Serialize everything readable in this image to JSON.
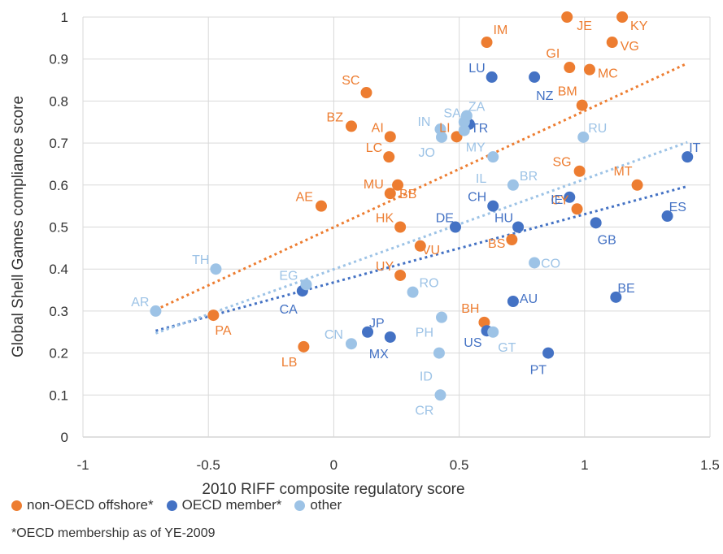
{
  "chart_data": {
    "type": "scatter",
    "title": "",
    "xlabel": "2010 RIFF composite regulatory score",
    "ylabel": "Global Shell Games compliance score",
    "xlim": [
      -1,
      1.5
    ],
    "ylim": [
      0,
      1
    ],
    "x_ticks": [
      "-1",
      "-0.5",
      "0",
      "0.5",
      "1",
      "1.5"
    ],
    "y_ticks": [
      "0",
      "0.1",
      "0.2",
      "0.3",
      "0.4",
      "0.5",
      "0.6",
      "0.7",
      "0.8",
      "0.9",
      "1"
    ],
    "grid": true,
    "legend_position": "bottom",
    "footnote": "*OECD membership as of YE-2009",
    "series": [
      {
        "name": "non-OECD offshore*",
        "color": "#ed7d31",
        "points": [
          {
            "label": "JE",
            "x": 0.93,
            "y": 1.0
          },
          {
            "label": "KY",
            "x": 1.15,
            "y": 1.0
          },
          {
            "label": "IM",
            "x": 0.61,
            "y": 0.94
          },
          {
            "label": "VG",
            "x": 1.11,
            "y": 0.94
          },
          {
            "label": "GI",
            "x": 0.94,
            "y": 0.88
          },
          {
            "label": "MC",
            "x": 1.02,
            "y": 0.875
          },
          {
            "label": "SC",
            "x": 0.13,
            "y": 0.82
          },
          {
            "label": "BM",
            "x": 0.99,
            "y": 0.79
          },
          {
            "label": "BZ",
            "x": 0.07,
            "y": 0.74
          },
          {
            "label": "AI",
            "x": 0.225,
            "y": 0.715
          },
          {
            "label": "LI",
            "x": 0.49,
            "y": 0.715
          },
          {
            "label": "LC",
            "x": 0.22,
            "y": 0.667
          },
          {
            "label": "SG",
            "x": 0.98,
            "y": 0.633
          },
          {
            "label": "MT",
            "x": 1.21,
            "y": 0.6
          },
          {
            "label": "BB",
            "x": 0.255,
            "y": 0.6
          },
          {
            "label": "MU",
            "x": 0.225,
            "y": 0.58
          },
          {
            "label": "AE",
            "x": -0.05,
            "y": 0.55
          },
          {
            "label": "CY",
            "x": 0.97,
            "y": 0.543
          },
          {
            "label": "HK",
            "x": 0.265,
            "y": 0.5
          },
          {
            "label": "BS",
            "x": 0.71,
            "y": 0.47
          },
          {
            "label": "VU",
            "x": 0.345,
            "y": 0.455
          },
          {
            "label": "UY",
            "x": 0.265,
            "y": 0.385
          },
          {
            "label": "PA",
            "x": -0.48,
            "y": 0.29
          },
          {
            "label": "BH",
            "x": 0.6,
            "y": 0.273
          },
          {
            "label": "LB",
            "x": -0.12,
            "y": 0.215
          }
        ]
      },
      {
        "name": "OECD member*",
        "color": "#4472c4",
        "points": [
          {
            "label": "LU",
            "x": 0.63,
            "y": 0.857
          },
          {
            "label": "NZ",
            "x": 0.8,
            "y": 0.857
          },
          {
            "label": "TR",
            "x": 0.54,
            "y": 0.745
          },
          {
            "label": "IT",
            "x": 1.41,
            "y": 0.667
          },
          {
            "label": "IE",
            "x": 0.94,
            "y": 0.571
          },
          {
            "label": "CH",
            "x": 0.635,
            "y": 0.55
          },
          {
            "label": "GB",
            "x": 1.045,
            "y": 0.51
          },
          {
            "label": "ES",
            "x": 1.33,
            "y": 0.526
          },
          {
            "label": "DE",
            "x": 0.485,
            "y": 0.5
          },
          {
            "label": "HU",
            "x": 0.735,
            "y": 0.5
          },
          {
            "label": "CA",
            "x": -0.125,
            "y": 0.348
          },
          {
            "label": "BE",
            "x": 1.125,
            "y": 0.333
          },
          {
            "label": "AU",
            "x": 0.715,
            "y": 0.323
          },
          {
            "label": "JP",
            "x": 0.135,
            "y": 0.25
          },
          {
            "label": "MX",
            "x": 0.225,
            "y": 0.238
          },
          {
            "label": "US",
            "x": 0.61,
            "y": 0.253
          },
          {
            "label": "PT",
            "x": 0.855,
            "y": 0.2
          }
        ]
      },
      {
        "name": "other",
        "color": "#9dc3e6",
        "points": [
          {
            "label": "ZA",
            "x": 0.53,
            "y": 0.765
          },
          {
            "label": "SA",
            "x": 0.52,
            "y": 0.75
          },
          {
            "label": "IN",
            "x": 0.425,
            "y": 0.733
          },
          {
            "label": "JO",
            "x": 0.43,
            "y": 0.714
          },
          {
            "label": "MY",
            "x": 0.52,
            "y": 0.73
          },
          {
            "label": "RU",
            "x": 0.995,
            "y": 0.714
          },
          {
            "label": "IL",
            "x": 0.635,
            "y": 0.667
          },
          {
            "label": "BR",
            "x": 0.715,
            "y": 0.6
          },
          {
            "label": "CO",
            "x": 0.8,
            "y": 0.415
          },
          {
            "label": "TH",
            "x": -0.47,
            "y": 0.4
          },
          {
            "label": "EG",
            "x": -0.11,
            "y": 0.363
          },
          {
            "label": "RO",
            "x": 0.315,
            "y": 0.345
          },
          {
            "label": "AR",
            "x": -0.71,
            "y": 0.3
          },
          {
            "label": "PH",
            "x": 0.43,
            "y": 0.285
          },
          {
            "label": "CN",
            "x": 0.07,
            "y": 0.222
          },
          {
            "label": "GT",
            "x": 0.635,
            "y": 0.25
          },
          {
            "label": "ID",
            "x": 0.42,
            "y": 0.2
          },
          {
            "label": "CR",
            "x": 0.425,
            "y": 0.1
          }
        ]
      }
    ],
    "trendlines": [
      {
        "series": "non-OECD offshore*",
        "color": "#ed7d31",
        "x": [
          -0.71,
          1.41
        ],
        "y": [
          0.303,
          0.89
        ]
      },
      {
        "series": "OECD member*",
        "color": "#4472c4",
        "x": [
          -0.71,
          1.41
        ],
        "y": [
          0.253,
          0.597
        ]
      },
      {
        "series": "other",
        "color": "#9dc3e6",
        "x": [
          -0.71,
          1.41
        ],
        "y": [
          0.247,
          0.702
        ]
      }
    ]
  }
}
